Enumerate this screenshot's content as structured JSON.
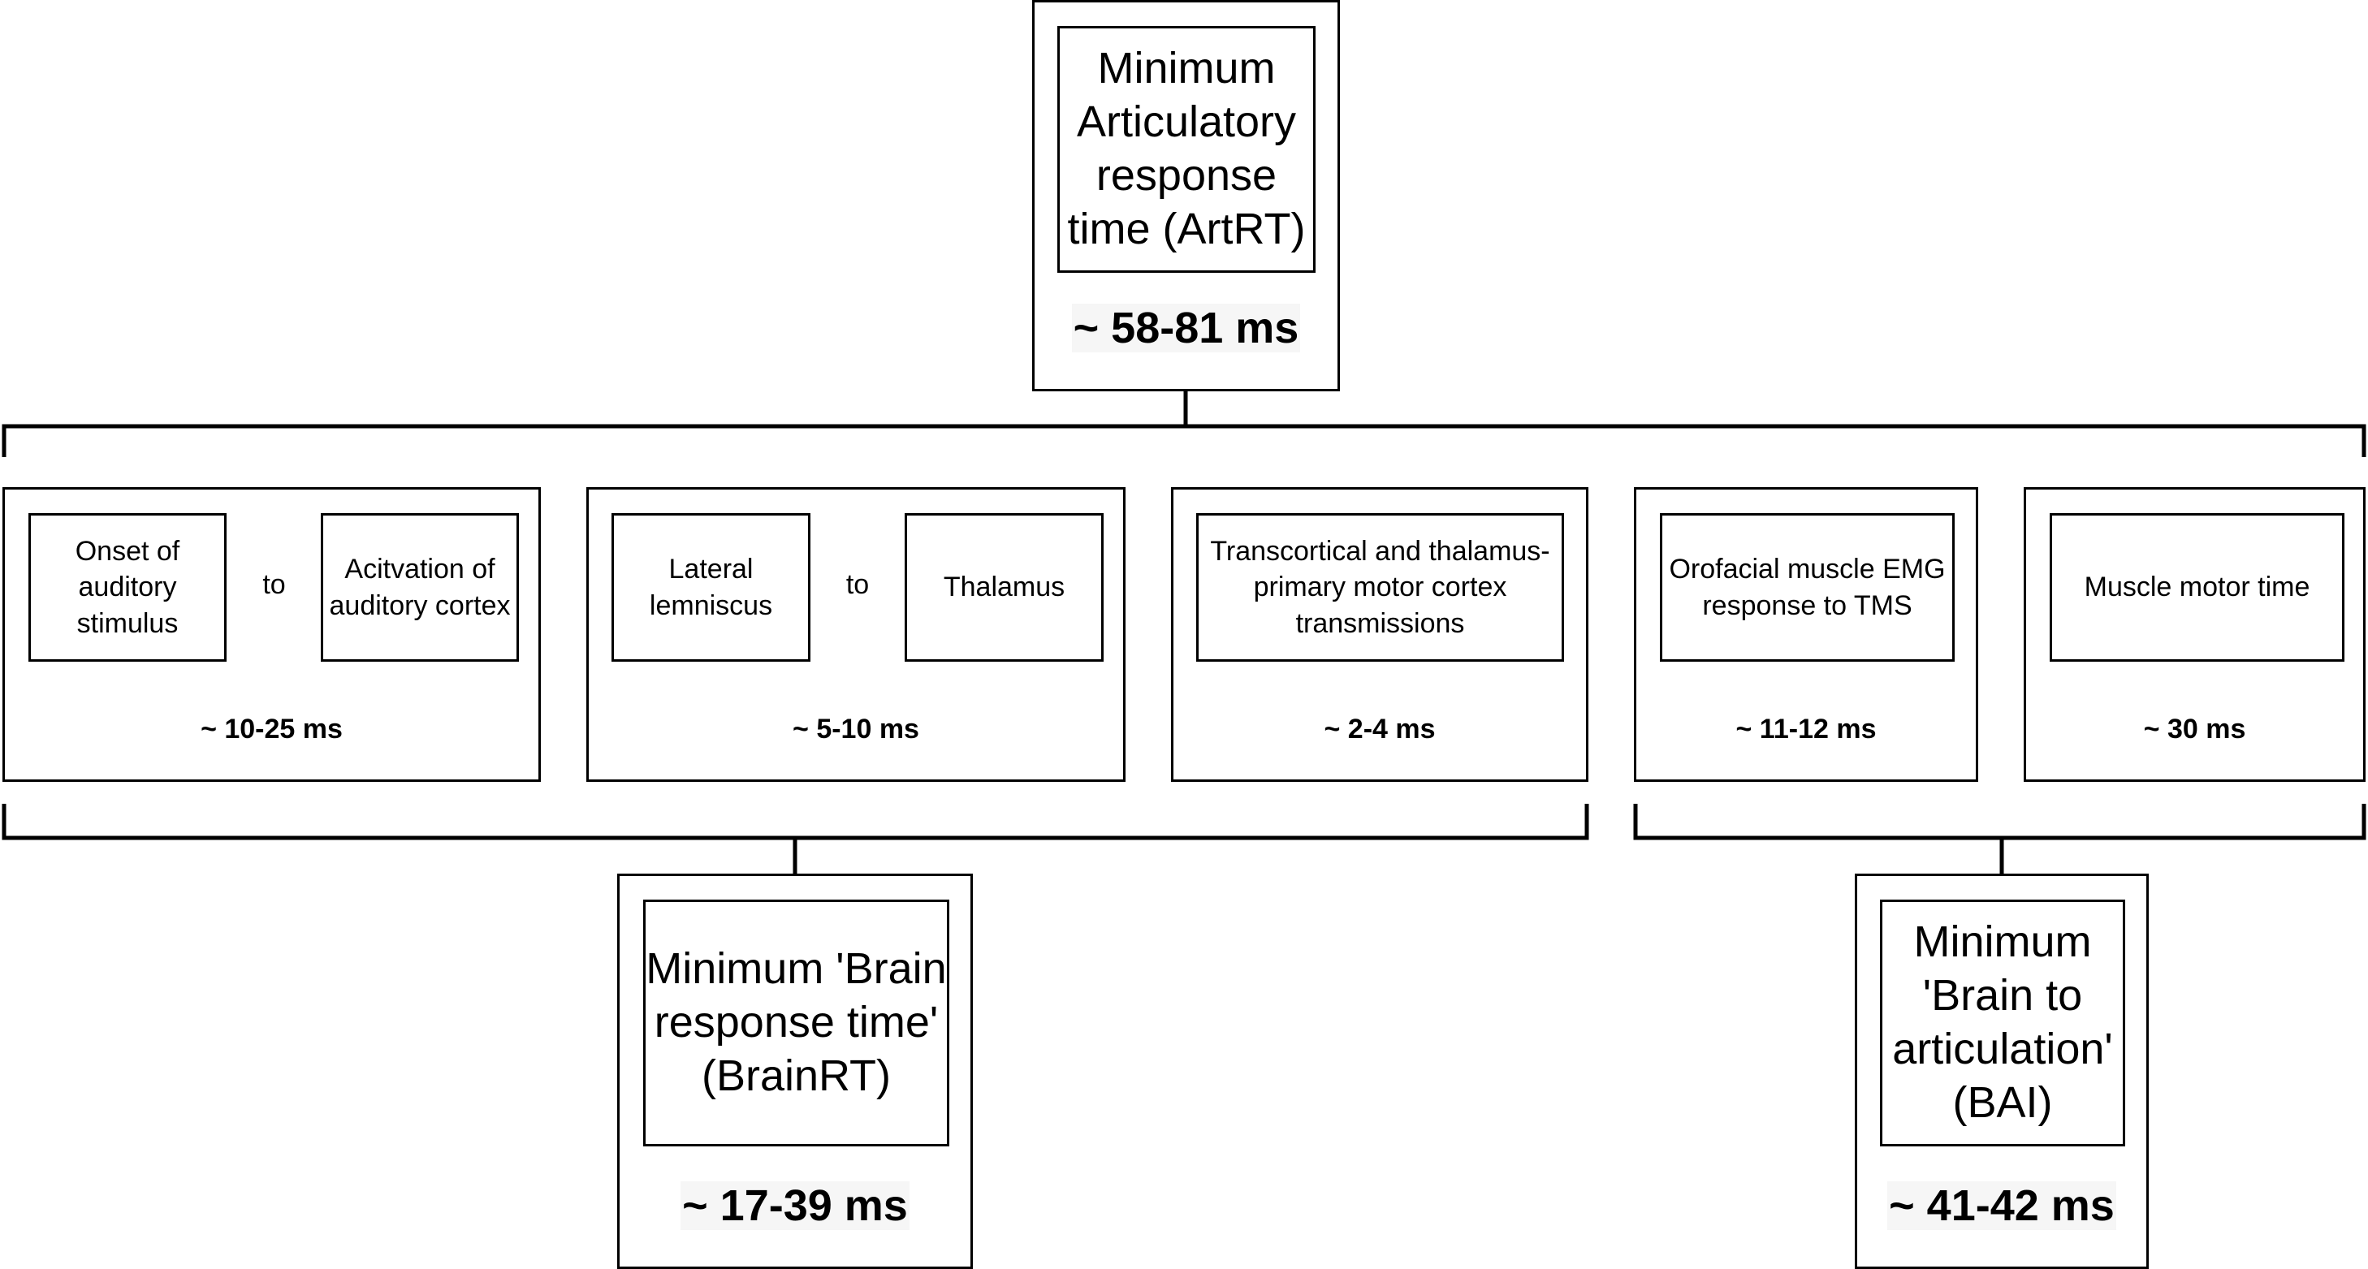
{
  "top": {
    "title": "Minimum Articulatory response time (ArtRT)",
    "time": "~ 58-81 ms"
  },
  "stages": [
    {
      "from": "Onset of auditory stimulus",
      "connector": "to",
      "to": "Acitvation of auditory cortex",
      "time": "~ 10-25 ms"
    },
    {
      "from": "Lateral lemniscus",
      "connector": "to",
      "to": "Thalamus",
      "time": "~ 5-10 ms"
    },
    {
      "label": "Transcortical and thalamus-primary motor cortex transmissions",
      "time": "~ 2-4 ms"
    },
    {
      "label": "Orofacial muscle EMG response to TMS",
      "time": "~ 11-12 ms"
    },
    {
      "label": "Muscle motor time",
      "time": "~ 30 ms"
    }
  ],
  "bottom_left": {
    "title": "Minimum 'Brain response time' (BrainRT)",
    "time": "~ 17-39 ms"
  },
  "bottom_right": {
    "title": "Minimum 'Brain to articulation' (BAI)",
    "time": "~ 41-42 ms"
  }
}
